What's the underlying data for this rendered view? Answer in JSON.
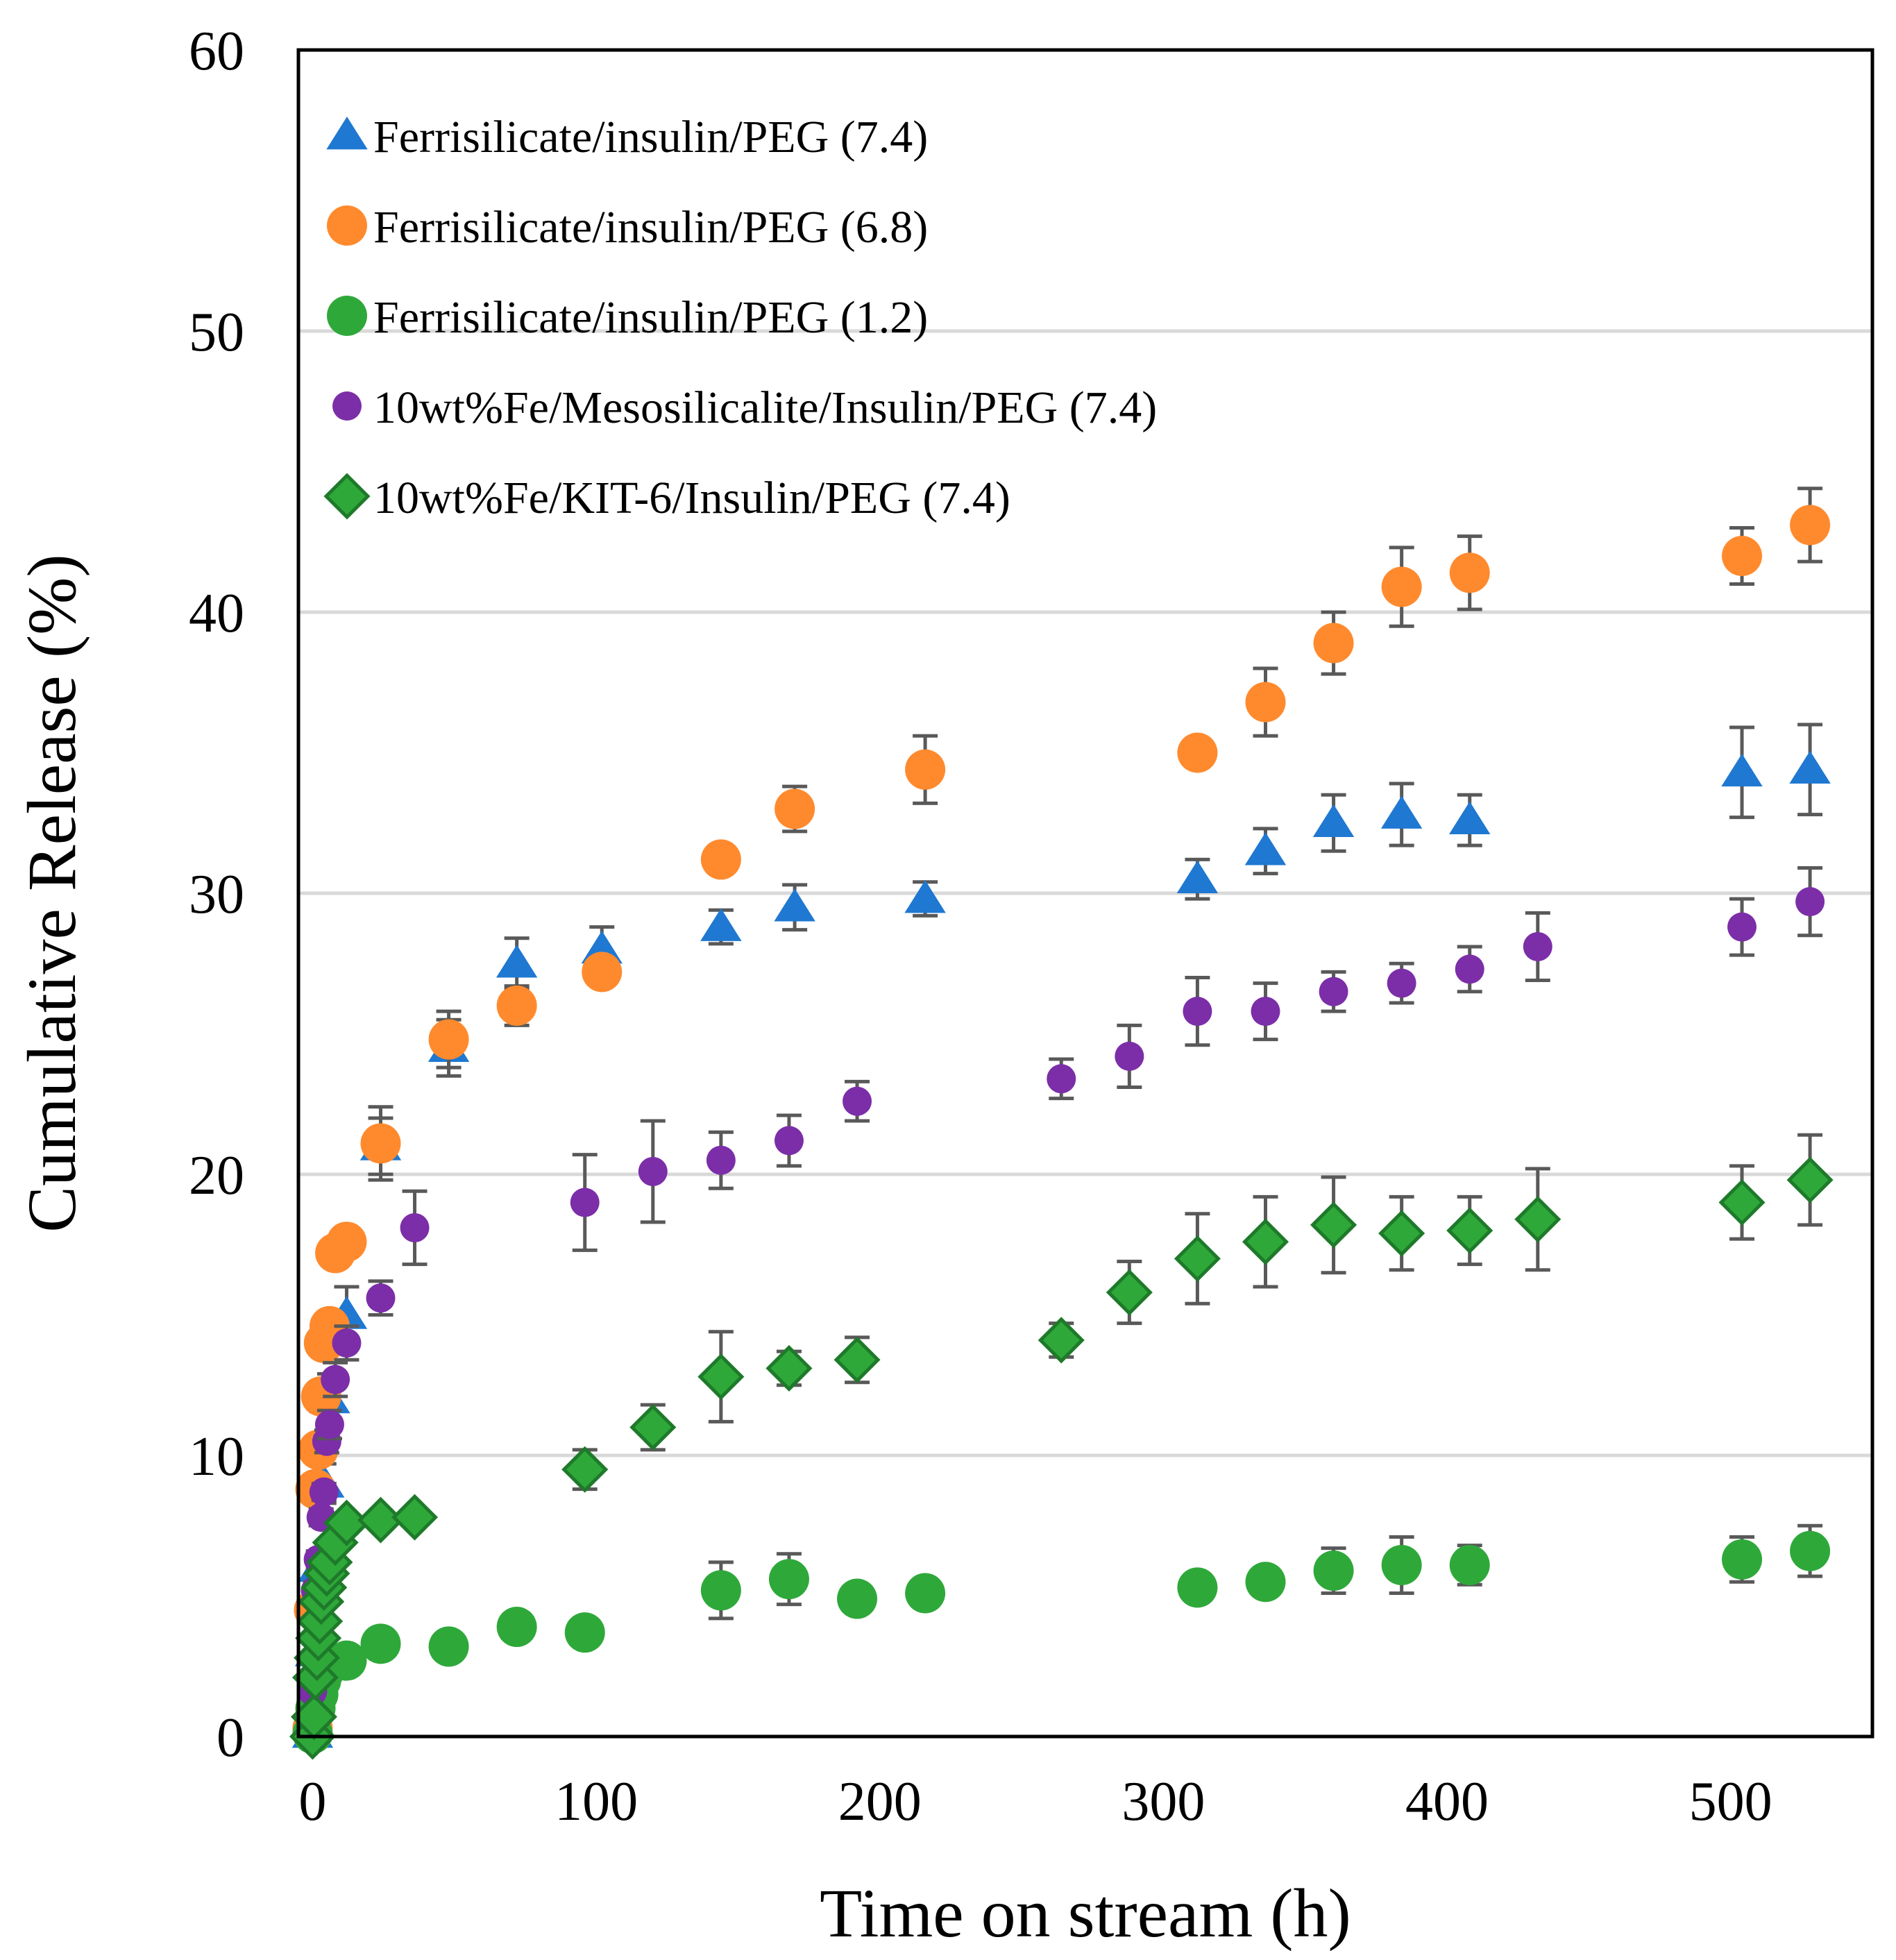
{
  "chart_data": {
    "type": "scatter",
    "title": "",
    "xlabel": "Time on stream (h)",
    "ylabel": "Cumulative Release (%)",
    "xlim": [
      -5,
      550
    ],
    "ylim": [
      0,
      60
    ],
    "xticks": [
      0,
      100,
      200,
      300,
      400,
      500
    ],
    "yticks": [
      0,
      10,
      20,
      30,
      40,
      50,
      60
    ],
    "grid": "horizontal",
    "legend_position": "top-left",
    "series": [
      {
        "name": "Ferrisilicate/insulin/PEG (7.4)",
        "marker": "triangle",
        "color": "#1f78d1",
        "x": [
          0,
          1,
          2,
          4,
          6,
          12,
          24,
          48,
          72,
          102,
          144,
          170,
          216,
          312,
          336,
          360,
          384,
          408,
          504,
          528
        ],
        "y": [
          0.1,
          3,
          6,
          9,
          12,
          15,
          21,
          24.5,
          27.5,
          28,
          28.8,
          29.5,
          29.8,
          30.5,
          31.5,
          32.5,
          32.8,
          32.6,
          34.3,
          34.4
        ],
        "err": [
          0,
          0.5,
          0.5,
          0.7,
          0.9,
          1.0,
          1.0,
          1.0,
          0.9,
          0.8,
          0.6,
          0.8,
          0.6,
          0.7,
          0.8,
          1.0,
          1.1,
          0.9,
          1.6,
          1.6
        ]
      },
      {
        "name": "Ferrisilicate/insulin/PEG (6.8)",
        "marker": "circle",
        "color": "#ff8a2e",
        "x": [
          0,
          0.5,
          1,
          2,
          3,
          4,
          6,
          8,
          12,
          24,
          48,
          72,
          102,
          144,
          170,
          216,
          312,
          336,
          360,
          384,
          408,
          504,
          528
        ],
        "y": [
          0.3,
          4.5,
          8.8,
          10.2,
          12.1,
          14,
          14.6,
          17.2,
          17.6,
          21.1,
          24.8,
          26,
          27.2,
          31.2,
          33,
          34.4,
          35,
          36.8,
          38.9,
          40.9,
          41.4,
          42,
          43.1
        ],
        "err": [
          0,
          0.3,
          0.4,
          0.4,
          0.4,
          0.4,
          0.4,
          0.5,
          0.5,
          1.3,
          1.0,
          0.7,
          0.5,
          0.5,
          0.8,
          1.2,
          0.5,
          1.2,
          1.1,
          1.4,
          1.3,
          1.0,
          1.3
        ]
      },
      {
        "name": "Ferrisilicate/insulin/PEG (1.2)",
        "marker": "circle",
        "color": "#2fa83a",
        "x": [
          0,
          1,
          2,
          3,
          4,
          6,
          12,
          24,
          48,
          72,
          96,
          144,
          168,
          192,
          216,
          312,
          336,
          360,
          384,
          408,
          504,
          528
        ],
        "y": [
          0.1,
          1,
          1.5,
          2,
          2.3,
          2.6,
          2.7,
          3.3,
          3.2,
          3.9,
          3.7,
          5.2,
          5.6,
          4.9,
          5.1,
          5.3,
          5.5,
          5.9,
          6.1,
          6.1,
          6.3,
          6.6
        ],
        "err": [
          0,
          0.2,
          0.2,
          0.2,
          0.2,
          0.2,
          0.3,
          0.3,
          0.2,
          0.3,
          0.3,
          1.0,
          0.9,
          0.3,
          0.3,
          0.3,
          0.5,
          0.8,
          1.0,
          0.7,
          0.8,
          0.9
        ]
      },
      {
        "name": "10wt%Fe/Mesosilicalite/Insulin/PEG (7.4)",
        "marker": "small-circle",
        "color": "#7b2ea8",
        "x": [
          0,
          1,
          2,
          3,
          4,
          5,
          6,
          8,
          12,
          24,
          36,
          96,
          120,
          144,
          168,
          192,
          264,
          288,
          312,
          336,
          360,
          384,
          408,
          432,
          504,
          528
        ],
        "y": [
          1.6,
          5.2,
          6.3,
          7.8,
          8.7,
          10.5,
          11.1,
          12.7,
          14,
          15.6,
          18.1,
          19,
          20.1,
          20.5,
          21.2,
          22.6,
          23.4,
          24.2,
          25.8,
          25.8,
          26.5,
          26.8,
          27.3,
          28.1,
          28.8,
          29.7
        ],
        "err": [
          0,
          0.3,
          0.3,
          0.3,
          0.3,
          0.4,
          0.5,
          0.6,
          0.6,
          0.6,
          1.3,
          1.7,
          1.8,
          1.0,
          0.9,
          0.7,
          0.7,
          1.1,
          1.2,
          1.0,
          0.7,
          0.7,
          0.8,
          1.2,
          1.0,
          1.2
        ]
      },
      {
        "name": "10wt%Fe/KIT-6/Insulin/PEG (7.4)",
        "marker": "diamond",
        "color": "#2fa83a",
        "x": [
          0,
          0.5,
          1,
          1.5,
          2,
          2.5,
          3,
          4,
          5,
          6,
          8,
          12,
          24,
          36,
          96,
          120,
          144,
          168,
          192,
          264,
          288,
          312,
          336,
          360,
          384,
          408,
          432,
          504,
          528
        ],
        "y": [
          0,
          0.7,
          2.1,
          2.8,
          3.5,
          4.1,
          4.8,
          5.3,
          5.8,
          6.2,
          6.9,
          7.6,
          7.7,
          7.8,
          9.5,
          11,
          12.8,
          13.1,
          13.4,
          14.1,
          15.8,
          17,
          17.6,
          18.2,
          17.9,
          18,
          18.4,
          19,
          19.8
        ],
        "err": [
          0,
          0.2,
          0.2,
          0.2,
          0.2,
          0.2,
          0.3,
          0.3,
          0.3,
          0.3,
          0.3,
          0.3,
          0.3,
          0.3,
          0.7,
          0.8,
          1.6,
          0.6,
          0.8,
          0.6,
          1.1,
          1.6,
          1.6,
          1.7,
          1.3,
          1.2,
          1.8,
          1.3,
          1.6
        ]
      }
    ]
  }
}
